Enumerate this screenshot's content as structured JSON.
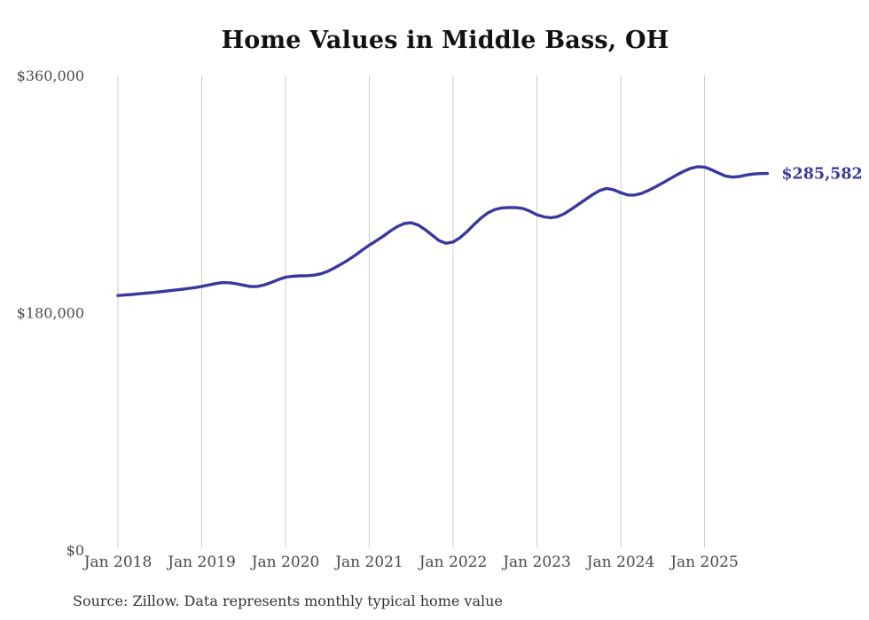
{
  "page": {
    "title": "Home Values in Middle Bass, OH",
    "source_note": "Source: Zillow. Data represents monthly typical home value"
  },
  "chart_data": {
    "type": "line",
    "title": "Home Values in Middle Bass, OH",
    "series_name": "Monthly typical home value",
    "line_color": "#38389e",
    "grid_color": "#cccccc",
    "axis_text_color": "#4a4a4a",
    "grid": "vertical-only",
    "legend": "none",
    "ylim": [
      0,
      360000
    ],
    "y_ticks": [
      {
        "label": "$0",
        "value": 0
      },
      {
        "label": "$180,000",
        "value": 180000
      },
      {
        "label": "$360,000",
        "value": 360000
      }
    ],
    "x_tick_labels": [
      "Jan 2018",
      "Jan 2019",
      "Jan 2020",
      "Jan 2021",
      "Jan 2022",
      "Jan 2023",
      "Jan 2024",
      "Jan 2025"
    ],
    "end_label": "$285,582",
    "end_value": 285582,
    "x": [
      "Jan 2018",
      "Feb 2018",
      "Mar 2018",
      "Apr 2018",
      "May 2018",
      "Jun 2018",
      "Jul 2018",
      "Aug 2018",
      "Sep 2018",
      "Oct 2018",
      "Nov 2018",
      "Dec 2018",
      "Jan 2019",
      "Feb 2019",
      "Mar 2019",
      "Apr 2019",
      "May 2019",
      "Jun 2019",
      "Jul 2019",
      "Aug 2019",
      "Sep 2019",
      "Oct 2019",
      "Nov 2019",
      "Dec 2019",
      "Jan 2020",
      "Feb 2020",
      "Mar 2020",
      "Apr 2020",
      "May 2020",
      "Jun 2020",
      "Jul 2020",
      "Aug 2020",
      "Sep 2020",
      "Oct 2020",
      "Nov 2020",
      "Dec 2020",
      "Jan 2021",
      "Feb 2021",
      "Mar 2021",
      "Apr 2021",
      "May 2021",
      "Jun 2021",
      "Jul 2021",
      "Aug 2021",
      "Sep 2021",
      "Oct 2021",
      "Nov 2021",
      "Dec 2021",
      "Jan 2022",
      "Feb 2022",
      "Mar 2022",
      "Apr 2022",
      "May 2022",
      "Jun 2022",
      "Jul 2022",
      "Aug 2022",
      "Sep 2022",
      "Oct 2022",
      "Nov 2022",
      "Dec 2022",
      "Jan 2023",
      "Feb 2023",
      "Mar 2023",
      "Apr 2023",
      "May 2023",
      "Jun 2023",
      "Jul 2023",
      "Aug 2023",
      "Sep 2023",
      "Oct 2023",
      "Nov 2023",
      "Dec 2023",
      "Jan 2024",
      "Feb 2024",
      "Mar 2024",
      "Apr 2024",
      "May 2024",
      "Jun 2024",
      "Jul 2024",
      "Aug 2024",
      "Sep 2024",
      "Oct 2024",
      "Nov 2024",
      "Dec 2024",
      "Jan 2025",
      "Feb 2025",
      "Mar 2025",
      "Apr 2025",
      "May 2025",
      "Jun 2025",
      "Jul 2025",
      "Aug 2025",
      "Sep 2025",
      "Oct 2025"
    ],
    "values": [
      193000,
      193400,
      193800,
      194300,
      194800,
      195300,
      195800,
      196400,
      197000,
      197600,
      198300,
      199000,
      199900,
      201000,
      202100,
      202800,
      202700,
      201900,
      200800,
      199800,
      199900,
      201100,
      203000,
      205100,
      206900,
      207600,
      207900,
      208000,
      208400,
      209400,
      211300,
      213900,
      216900,
      220100,
      223700,
      227500,
      231200,
      234600,
      238100,
      241900,
      245300,
      247600,
      248200,
      246500,
      243000,
      238800,
      234600,
      232600,
      233600,
      236900,
      241600,
      246900,
      251800,
      255800,
      258300,
      259500,
      259800,
      259700,
      259000,
      257000,
      254300,
      252700,
      252000,
      252900,
      255300,
      258700,
      262400,
      266000,
      269600,
      272700,
      274300,
      273200,
      271000,
      269300,
      269200,
      270500,
      272800,
      275500,
      278400,
      281400,
      284400,
      287200,
      289500,
      290700,
      290400,
      288400,
      285900,
      283700,
      282800,
      283300,
      284400,
      285200,
      285500,
      285582
    ]
  }
}
